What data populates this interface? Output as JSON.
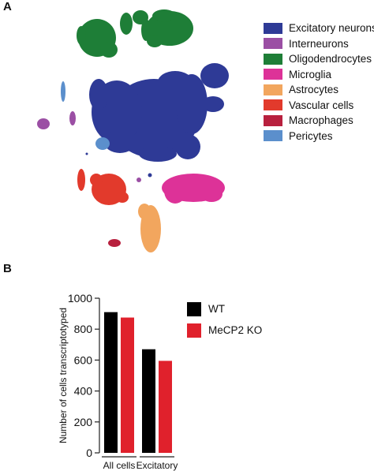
{
  "panels": {
    "a": "A",
    "b": "B"
  },
  "tsne": {
    "legend": [
      {
        "label": "Excitatory neurons",
        "color": "#2e3a96"
      },
      {
        "label": "Interneurons",
        "color": "#9b4fa4"
      },
      {
        "label": "Oligodendrocytes",
        "color": "#1e7e37"
      },
      {
        "label": "Microglia",
        "color": "#dd3298"
      },
      {
        "label": "Astrocytes",
        "color": "#f2a65e"
      },
      {
        "label": "Vascular cells",
        "color": "#e23a2c"
      },
      {
        "label": "Macrophages",
        "color": "#b8203e"
      },
      {
        "label": "Pericytes",
        "color": "#5b8fcc"
      }
    ]
  },
  "chart_data": {
    "type": "bar",
    "categories": [
      "All cells",
      "Excitatory"
    ],
    "series": [
      {
        "name": "WT",
        "color": "#000000",
        "values": [
          910,
          670
        ]
      },
      {
        "name": "MeCP2 KO",
        "color": "#e0212c",
        "values": [
          875,
          595
        ]
      }
    ],
    "ylabel": "Number of cells transcriptotyped",
    "ylim": [
      0,
      1000
    ],
    "yticks": [
      0,
      200,
      400,
      600,
      800,
      1000
    ],
    "legend_position": "right",
    "grid": false
  }
}
